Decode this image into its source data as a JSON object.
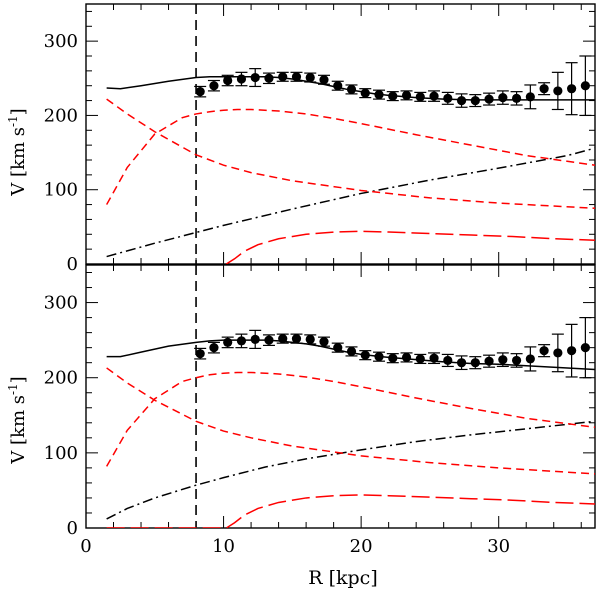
{
  "figure": {
    "xlabel": "R [kpc]",
    "ylabel_main": "V [km s",
    "ylabel_sup": "-1",
    "ylabel_close": "]"
  },
  "chart_data": [
    {
      "type": "line",
      "panel": "top",
      "xlim": [
        0,
        37
      ],
      "ylim": [
        0,
        350
      ],
      "xticks": [
        0,
        10,
        20,
        30
      ],
      "xtick_labels": [
        "",
        "",
        "",
        ""
      ],
      "yticks": [
        0,
        100,
        200,
        300
      ],
      "ytick_labels": [
        "0",
        "100",
        "200",
        "300"
      ],
      "reference_line_x": 8,
      "grid": false,
      "legend": "none",
      "colors": {
        "total": "#000000",
        "halo": "#000000",
        "components": "#ff0000",
        "points": "#000000"
      },
      "observed": {
        "x": [
          8.3,
          9.3,
          10.3,
          11.3,
          12.3,
          13.3,
          14.3,
          15.3,
          16.3,
          17.3,
          18.3,
          19.3,
          20.3,
          21.3,
          22.3,
          23.3,
          24.3,
          25.3,
          26.3,
          27.3,
          28.3,
          29.3,
          30.3,
          31.3,
          32.3,
          33.3,
          34.3,
          35.3,
          36.3
        ],
        "y": [
          232,
          240,
          247,
          249,
          251,
          250,
          252,
          252,
          251,
          248,
          240,
          235,
          230,
          228,
          226,
          227,
          225,
          226,
          223,
          220,
          220,
          222,
          224,
          223,
          225,
          236,
          233,
          236,
          240
        ],
        "err": [
          7,
          7,
          7,
          9,
          12,
          7,
          6,
          6,
          6,
          6,
          6,
          6,
          6,
          6,
          6,
          6,
          6,
          7,
          8,
          9,
          8,
          8,
          9,
          9,
          16,
          8,
          25,
          35,
          40
        ]
      },
      "series": [
        {
          "style": "solid",
          "color": "#000000",
          "x": [
            1.5,
            2.5,
            4,
            6,
            8,
            9,
            10,
            11,
            12,
            13,
            14,
            15,
            16,
            17,
            18,
            19,
            20,
            21,
            22,
            24,
            26,
            28,
            30,
            32,
            34,
            36,
            37
          ],
          "y": [
            237,
            236,
            240,
            246,
            251,
            252,
            252,
            252,
            252,
            252,
            251,
            249,
            246,
            243,
            239,
            235,
            232,
            229,
            227,
            224,
            222,
            221,
            221,
            221,
            221,
            221,
            221
          ]
        },
        {
          "style": "dashdot",
          "color": "#000000",
          "x": [
            1.5,
            5,
            10,
            15,
            20,
            25,
            30,
            35,
            37
          ],
          "y": [
            10,
            28,
            52,
            74,
            95,
            113,
            129,
            146,
            156
          ]
        },
        {
          "style": "dashed",
          "color": "#ff0000",
          "x": [
            1.5,
            3,
            5,
            7,
            8,
            9,
            10,
            11,
            12,
            14,
            16,
            18,
            20,
            24,
            28,
            32,
            37
          ],
          "y": [
            80,
            130,
            175,
            197,
            202,
            205,
            207,
            208,
            208,
            206,
            202,
            196,
            189,
            174,
            160,
            146,
            133
          ]
        },
        {
          "style": "dashed",
          "color": "#ff0000",
          "x": [
            1.5,
            3,
            5,
            8,
            10,
            12,
            15,
            20,
            25,
            30,
            37
          ],
          "y": [
            222,
            202,
            178,
            147,
            133,
            123,
            112,
            99,
            89,
            82,
            75
          ]
        },
        {
          "style": "longdash",
          "color": "#ff0000",
          "x": [
            10.2,
            10.8,
            11.5,
            12.5,
            14,
            16,
            18,
            20,
            22,
            25,
            28,
            31,
            34,
            37
          ],
          "y": [
            0,
            7,
            17,
            26,
            34,
            40,
            43,
            44,
            43,
            41,
            39,
            37,
            34,
            32
          ]
        }
      ]
    },
    {
      "type": "line",
      "panel": "bottom",
      "xlim": [
        0,
        37
      ],
      "ylim": [
        0,
        350
      ],
      "xticks": [
        0,
        10,
        20,
        30
      ],
      "xtick_labels": [
        "0",
        "10",
        "20",
        "30"
      ],
      "yticks": [
        0,
        100,
        200,
        300
      ],
      "ytick_labels": [
        "0",
        "100",
        "200",
        "300"
      ],
      "reference_line_x": 8,
      "grid": false,
      "legend": "none",
      "colors": {
        "total": "#000000",
        "halo": "#000000",
        "components": "#ff0000",
        "points": "#000000"
      },
      "observed": {
        "x": [
          8.3,
          9.3,
          10.3,
          11.3,
          12.3,
          13.3,
          14.3,
          15.3,
          16.3,
          17.3,
          18.3,
          19.3,
          20.3,
          21.3,
          22.3,
          23.3,
          24.3,
          25.3,
          26.3,
          27.3,
          28.3,
          29.3,
          30.3,
          31.3,
          32.3,
          33.3,
          34.3,
          35.3,
          36.3
        ],
        "y": [
          232,
          240,
          247,
          249,
          251,
          250,
          252,
          252,
          251,
          248,
          240,
          235,
          230,
          228,
          226,
          227,
          225,
          226,
          223,
          220,
          220,
          222,
          224,
          223,
          225,
          236,
          233,
          236,
          240
        ],
        "err": [
          7,
          7,
          7,
          9,
          12,
          7,
          6,
          6,
          6,
          6,
          6,
          6,
          6,
          6,
          6,
          6,
          6,
          7,
          8,
          9,
          8,
          8,
          9,
          9,
          16,
          8,
          25,
          35,
          40
        ]
      },
      "series": [
        {
          "style": "solid",
          "color": "#000000",
          "x": [
            1.5,
            2.5,
            4,
            6,
            8,
            9,
            10,
            11,
            12,
            13,
            14,
            15,
            16,
            17,
            18,
            19,
            20,
            22,
            24,
            26,
            28,
            30,
            32,
            34,
            36,
            37
          ],
          "y": [
            228,
            228,
            234,
            242,
            247,
            249,
            250,
            250,
            250,
            250,
            249,
            247,
            245,
            242,
            238,
            234,
            231,
            227,
            224,
            221,
            219,
            218,
            216,
            214,
            212,
            211
          ]
        },
        {
          "style": "dashdot",
          "color": "#000000",
          "x": [
            1.5,
            3,
            5,
            8,
            10,
            13,
            16,
            20,
            24,
            28,
            32,
            35,
            37
          ],
          "y": [
            12,
            26,
            40,
            57,
            67,
            81,
            92,
            104,
            115,
            124,
            132,
            138,
            142
          ]
        },
        {
          "style": "dashed",
          "color": "#ff0000",
          "x": [
            1.5,
            3,
            5,
            7,
            8,
            9,
            10,
            11,
            12,
            14,
            16,
            18,
            20,
            24,
            28,
            32,
            37
          ],
          "y": [
            82,
            130,
            172,
            195,
            200,
            204,
            206,
            207,
            207,
            205,
            201,
            195,
            188,
            173,
            159,
            146,
            134
          ]
        },
        {
          "style": "dashed",
          "color": "#ff0000",
          "x": [
            1.5,
            3,
            5,
            8,
            10,
            12,
            15,
            20,
            25,
            30,
            37
          ],
          "y": [
            213,
            193,
            170,
            142,
            129,
            120,
            109,
            96,
            87,
            80,
            72
          ]
        },
        {
          "style": "longdash",
          "color": "#ff0000",
          "x": [
            1.5,
            10.2,
            10.8,
            11.5,
            12.5,
            14,
            16,
            18,
            20,
            22,
            25,
            28,
            31,
            34,
            37
          ],
          "y": [
            0,
            0,
            7,
            17,
            26,
            34,
            40,
            43,
            44,
            43,
            41,
            39,
            37,
            34,
            32
          ]
        }
      ]
    }
  ]
}
